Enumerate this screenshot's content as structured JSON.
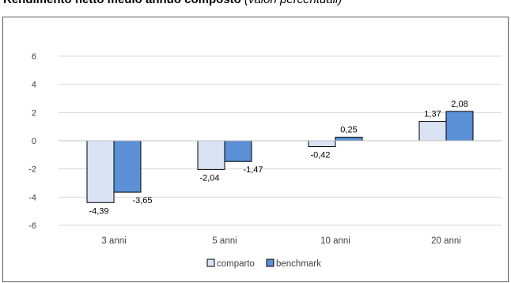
{
  "header": {
    "title_bold": "Rendimento netto medio annuo composto",
    "title_italic": "(valori percentuali)"
  },
  "colors": {
    "comparto": "#dae3f3",
    "benchmark": "#5b8fd6",
    "grid": "#d9d9d9",
    "bar_border": "#000000"
  },
  "chart_data": {
    "type": "bar",
    "title": "Rendimento netto medio annuo composto (valori percentuali)",
    "categories": [
      "3 anni",
      "5 anni",
      "10 anni",
      "20 anni"
    ],
    "series": [
      {
        "name": "comparto",
        "values": [
          -4.39,
          -2.04,
          -0.42,
          1.37
        ],
        "labels": [
          "-4,39",
          "-2,04",
          "-0,42",
          "1,37"
        ]
      },
      {
        "name": "benchmark",
        "values": [
          -3.65,
          -1.47,
          0.25,
          2.08
        ],
        "labels": [
          "-3,65",
          "-1,47",
          "0,25",
          "2,08"
        ]
      }
    ],
    "ylim": [
      -6,
      6
    ],
    "yticks": [
      6,
      4,
      2,
      0,
      -2,
      -4,
      -6
    ],
    "ytick_labels": [
      "6",
      "4",
      "2",
      "0",
      "-2",
      "-4",
      "-6"
    ],
    "grid": true,
    "legend_position": "bottom"
  }
}
